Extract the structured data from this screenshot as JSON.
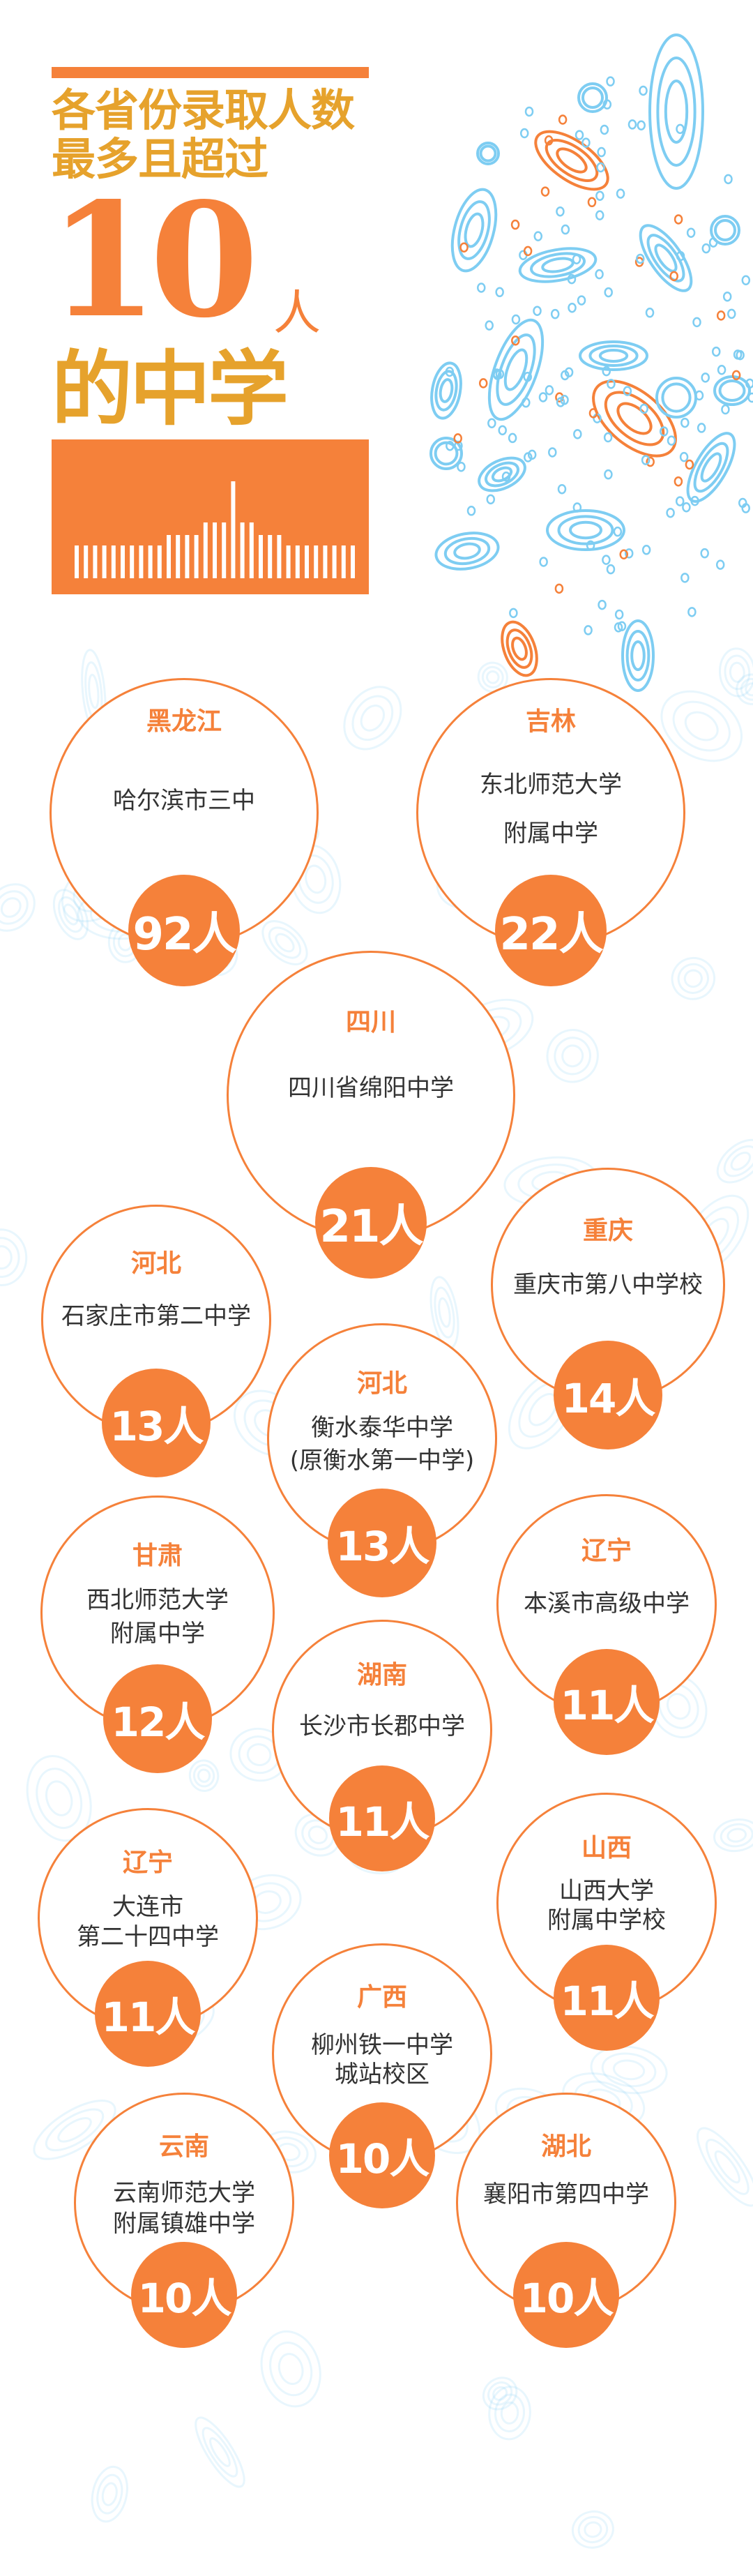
{
  "header": {
    "title_line1": "各省份录取人数",
    "title_line2": "最多且超过",
    "big_number": "10",
    "big_unit": "人",
    "title_line3": "的中学"
  },
  "colors": {
    "orange": "#f5813a",
    "gold": "#e6a22c",
    "pattern_blue": "#7ecdf2",
    "text": "#333333"
  },
  "schools": [
    {
      "province": "黑龙江",
      "school": [
        "哈尔滨市三中"
      ],
      "count": "92人"
    },
    {
      "province": "吉林",
      "school": [
        "东北师范大学",
        "附属中学"
      ],
      "count": "22人"
    },
    {
      "province": "四川",
      "school": [
        "四川省绵阳中学"
      ],
      "count": "21人"
    },
    {
      "province": "河北",
      "school": [
        "石家庄市第二中学"
      ],
      "count": "13人"
    },
    {
      "province": "重庆",
      "school": [
        "重庆市第八中学校"
      ],
      "count": "14人"
    },
    {
      "province": "河北",
      "school": [
        "衡水泰华中学",
        "(原衡水第一中学)"
      ],
      "count": "13人"
    },
    {
      "province": "甘肃",
      "school": [
        "西北师范大学",
        "附属中学"
      ],
      "count": "12人"
    },
    {
      "province": "辽宁",
      "school": [
        "本溪市高级中学"
      ],
      "count": "11人"
    },
    {
      "province": "湖南",
      "school": [
        "长沙市长郡中学"
      ],
      "count": "11人"
    },
    {
      "province": "辽宁",
      "school": [
        "大连市",
        "第二十四中学"
      ],
      "count": "11人"
    },
    {
      "province": "山西",
      "school": [
        "山西大学",
        "附属中学校"
      ],
      "count": "11人"
    },
    {
      "province": "广西",
      "school": [
        "柳州铁一中学",
        "城站校区"
      ],
      "count": "10人"
    },
    {
      "province": "云南",
      "school": [
        "云南师范大学",
        "附属镇雄中学"
      ],
      "count": "10人"
    },
    {
      "province": "湖北",
      "school": [
        "襄阳市第四中学"
      ],
      "count": "10人"
    }
  ]
}
